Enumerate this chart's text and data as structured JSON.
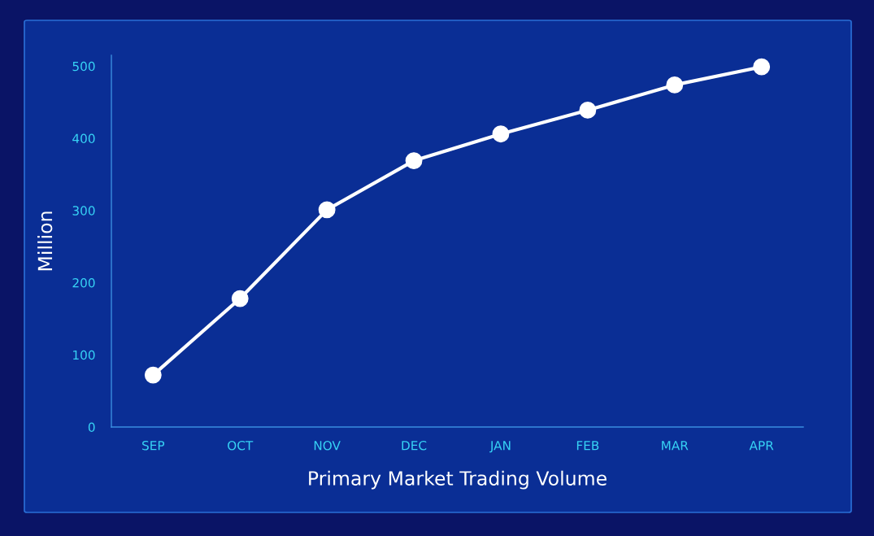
{
  "chart_data": {
    "type": "line",
    "xlabel": "Primary Market Trading Volume",
    "ylabel": "Million",
    "categories": [
      "SEP",
      "OCT",
      "NOV",
      "DEC",
      "JAN",
      "FEB",
      "MAR",
      "APR"
    ],
    "series": [
      {
        "color": "#ffffff",
        "values": [
          72,
          178,
          301,
          369,
          406,
          439,
          474,
          499
        ]
      }
    ],
    "ylim": [
      0,
      515
    ],
    "yticks": [
      0,
      100,
      200,
      300,
      400,
      500
    ],
    "grid": false,
    "legend": false,
    "marker": "circle",
    "line_style": "solid"
  }
}
